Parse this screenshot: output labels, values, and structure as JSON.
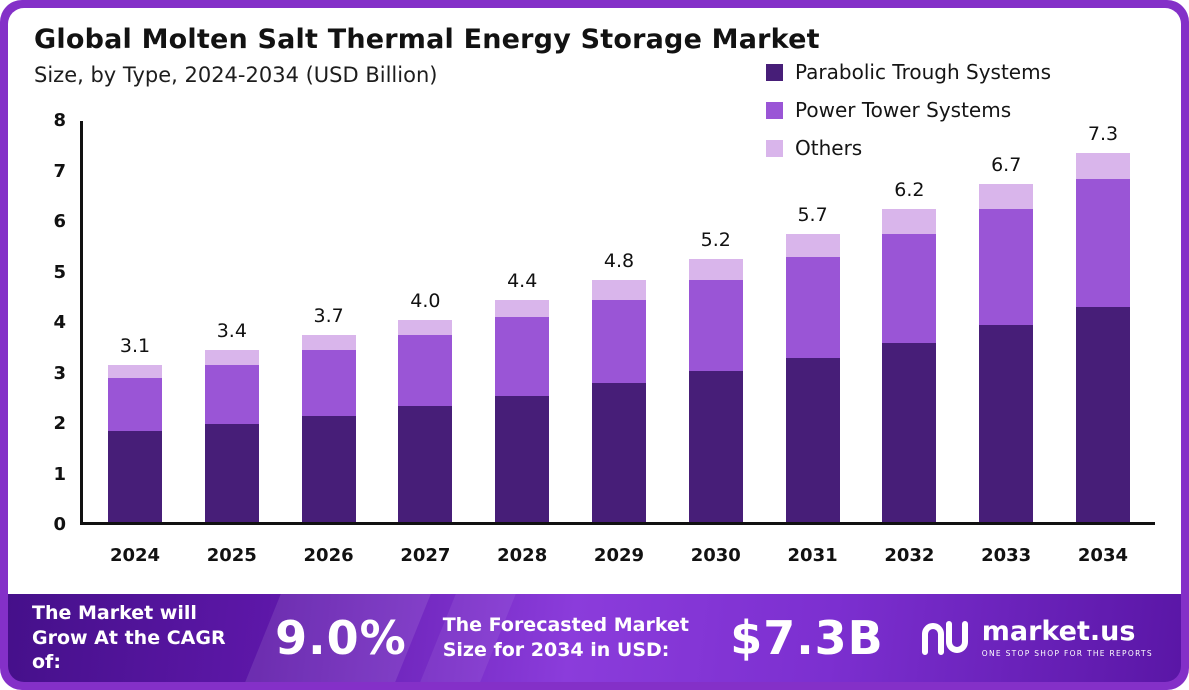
{
  "header": {
    "title": "Global Molten Salt Thermal Energy Storage Market",
    "subtitle": "Size, by Type, 2024-2034 (USD Billion)"
  },
  "chart_data": {
    "type": "bar",
    "stacked": true,
    "title": "Global Molten Salt Thermal Energy Storage Market",
    "subtitle": "Size, by Type, 2024-2034 (USD Billion)",
    "unit": "USD Billion",
    "categories": [
      "2024",
      "2025",
      "2026",
      "2027",
      "2028",
      "2029",
      "2030",
      "2031",
      "2032",
      "2033",
      "2034"
    ],
    "series": [
      {
        "name": "Parabolic Trough Systems",
        "color": "#471e78",
        "values": [
          1.8,
          1.95,
          2.1,
          2.3,
          2.5,
          2.75,
          3.0,
          3.25,
          3.55,
          3.9,
          4.25
        ]
      },
      {
        "name": "Power Tower Systems",
        "color": "#9a55d6",
        "values": [
          1.05,
          1.15,
          1.3,
          1.4,
          1.55,
          1.65,
          1.8,
          2.0,
          2.15,
          2.3,
          2.55
        ]
      },
      {
        "name": "Others",
        "color": "#d9b5eb",
        "values": [
          0.25,
          0.3,
          0.3,
          0.3,
          0.35,
          0.4,
          0.4,
          0.45,
          0.5,
          0.5,
          0.5
        ]
      }
    ],
    "totals": [
      3.1,
      3.4,
      3.7,
      4.0,
      4.4,
      4.8,
      5.2,
      5.7,
      6.2,
      6.7,
      7.3
    ],
    "ylim": [
      0,
      8
    ],
    "yticks": [
      0,
      1,
      2,
      3,
      4,
      5,
      6,
      7,
      8
    ],
    "grid": false,
    "legend_position": "top-right"
  },
  "footer": {
    "cagr_label": "The Market will Grow At the CAGR of:",
    "cagr_value": "9.0%",
    "forecast_label": "The Forecasted Market Size for 2034 in USD:",
    "forecast_value": "$7.3B",
    "brand": "market.us",
    "brand_tagline": "ONE STOP SHOP FOR THE REPORTS"
  }
}
